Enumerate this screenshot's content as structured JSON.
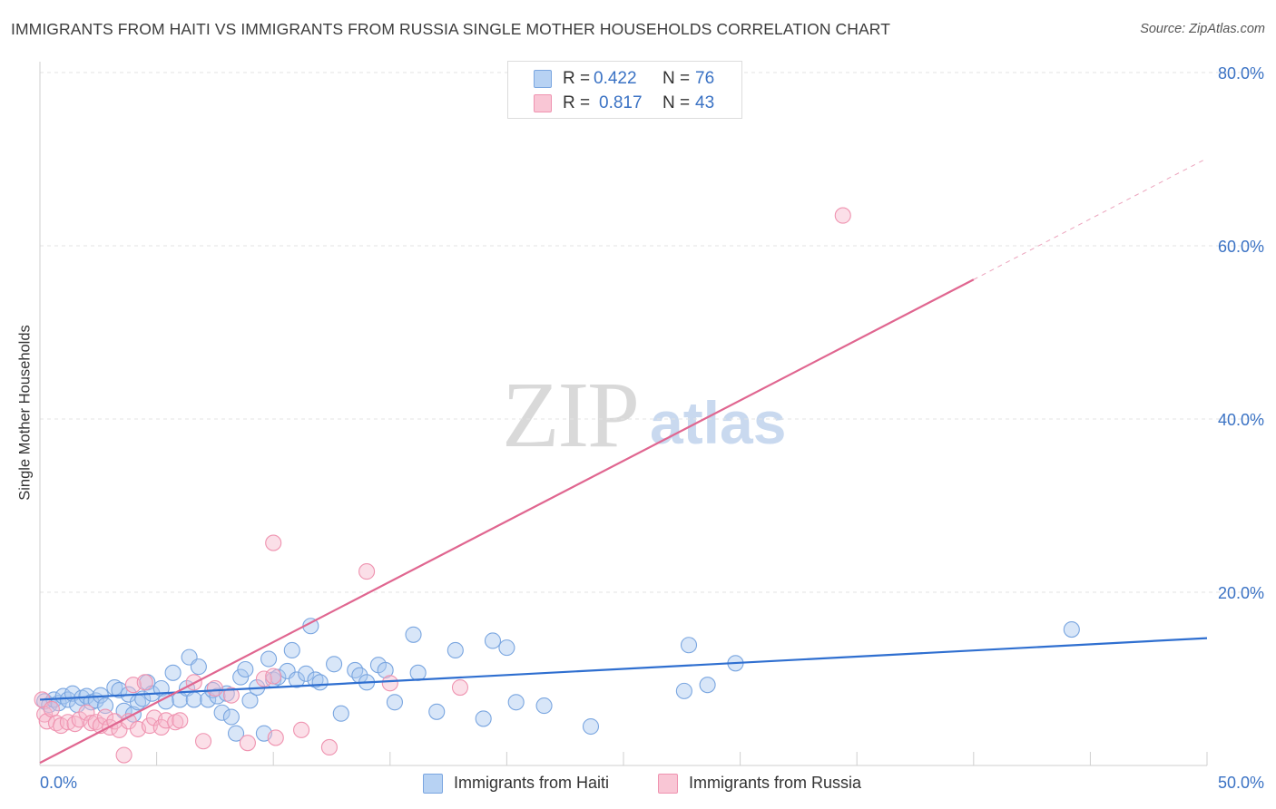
{
  "title": "IMMIGRANTS FROM HAITI VS IMMIGRANTS FROM RUSSIA SINGLE MOTHER HOUSEHOLDS CORRELATION CHART",
  "source": "Source: ZipAtlas.com",
  "watermark": {
    "part1": "ZIP",
    "part2": "atlas"
  },
  "legend": {
    "haiti": {
      "r_label": "R =",
      "r_value": "0.422",
      "n_label": "N =",
      "n_value": "76"
    },
    "russia": {
      "r_label": "R =",
      "r_value": "0.817",
      "n_label": "N =",
      "n_value": "43"
    }
  },
  "bottom_legend": {
    "haiti": "Immigrants from Haiti",
    "russia": "Immigrants from Russia"
  },
  "colors": {
    "haiti_fill": "#a9c8f0",
    "haiti_stroke": "#7aa6e0",
    "haiti_line": "#2f6fd0",
    "russia_fill": "#f7b8cb",
    "russia_stroke": "#ef93b0",
    "russia_line": "#e06690",
    "tick_label": "#3a72c4",
    "grid": "#e3e3e3"
  },
  "chart_data": {
    "type": "scatter",
    "title": "IMMIGRANTS FROM HAITI VS IMMIGRANTS FROM RUSSIA SINGLE MOTHER HOUSEHOLDS CORRELATION CHART",
    "xlabel": "",
    "ylabel": "Single Mother Households",
    "xlim": [
      0,
      50
    ],
    "ylim": [
      0,
      80
    ],
    "x_tick_labels": [
      "0.0%",
      "50.0%"
    ],
    "y_ticks": [
      20,
      40,
      60,
      80
    ],
    "y_tick_labels": [
      "20.0%",
      "40.0%",
      "60.0%",
      "80.0%"
    ],
    "grid": true,
    "legend_position": "top-center",
    "series": [
      {
        "name": "Immigrants from Haiti",
        "color": "#a9c8f0",
        "points": [
          [
            0.2,
            7.4
          ],
          [
            0.4,
            7.0
          ],
          [
            0.6,
            7.6
          ],
          [
            0.8,
            7.2
          ],
          [
            1.0,
            8.0
          ],
          [
            1.2,
            7.6
          ],
          [
            1.4,
            8.3
          ],
          [
            1.6,
            7.0
          ],
          [
            1.8,
            7.8
          ],
          [
            2.0,
            8.0
          ],
          [
            2.2,
            7.3
          ],
          [
            2.4,
            7.5
          ],
          [
            2.6,
            8.1
          ],
          [
            2.8,
            6.9
          ],
          [
            3.2,
            9.0
          ],
          [
            3.4,
            8.7
          ],
          [
            3.6,
            6.3
          ],
          [
            3.8,
            8.2
          ],
          [
            4.0,
            5.9
          ],
          [
            4.2,
            7.3
          ],
          [
            4.4,
            7.7
          ],
          [
            4.6,
            9.6
          ],
          [
            4.8,
            8.3
          ],
          [
            5.2,
            8.9
          ],
          [
            5.4,
            7.4
          ],
          [
            5.7,
            10.7
          ],
          [
            6.0,
            7.6
          ],
          [
            6.3,
            8.9
          ],
          [
            6.4,
            12.5
          ],
          [
            6.6,
            7.6
          ],
          [
            6.8,
            11.4
          ],
          [
            7.2,
            7.6
          ],
          [
            7.4,
            8.7
          ],
          [
            7.6,
            8.0
          ],
          [
            7.8,
            6.1
          ],
          [
            8.0,
            8.3
          ],
          [
            8.2,
            5.6
          ],
          [
            8.4,
            3.7
          ],
          [
            8.6,
            10.2
          ],
          [
            8.8,
            11.1
          ],
          [
            9.0,
            7.5
          ],
          [
            9.3,
            9.0
          ],
          [
            9.6,
            3.7
          ],
          [
            9.8,
            12.3
          ],
          [
            10.0,
            9.9
          ],
          [
            10.2,
            10.2
          ],
          [
            10.6,
            10.9
          ],
          [
            10.8,
            13.3
          ],
          [
            11.0,
            9.9
          ],
          [
            11.4,
            10.6
          ],
          [
            11.6,
            16.1
          ],
          [
            11.8,
            9.9
          ],
          [
            12.0,
            9.6
          ],
          [
            12.6,
            11.7
          ],
          [
            12.9,
            6.0
          ],
          [
            13.5,
            11.0
          ],
          [
            13.7,
            10.4
          ],
          [
            14.0,
            9.6
          ],
          [
            14.5,
            11.6
          ],
          [
            14.8,
            11.0
          ],
          [
            15.2,
            7.3
          ],
          [
            16.0,
            15.1
          ],
          [
            16.2,
            10.7
          ],
          [
            17.0,
            6.2
          ],
          [
            17.8,
            13.3
          ],
          [
            19.0,
            5.4
          ],
          [
            19.4,
            14.4
          ],
          [
            20.0,
            13.6
          ],
          [
            20.4,
            7.3
          ],
          [
            21.6,
            6.9
          ],
          [
            23.6,
            4.5
          ],
          [
            27.6,
            8.6
          ],
          [
            27.8,
            13.9
          ],
          [
            28.6,
            9.3
          ],
          [
            29.8,
            11.8
          ],
          [
            44.2,
            15.7
          ]
        ],
        "trendline": {
          "x": [
            0,
            50
          ],
          "y": [
            7.6,
            14.7
          ]
        }
      },
      {
        "name": "Immigrants from Russia",
        "color": "#f7b8cb",
        "points": [
          [
            0.1,
            7.6
          ],
          [
            0.2,
            5.9
          ],
          [
            0.3,
            5.1
          ],
          [
            0.5,
            6.5
          ],
          [
            0.7,
            4.9
          ],
          [
            0.9,
            4.6
          ],
          [
            1.2,
            5.0
          ],
          [
            1.5,
            4.8
          ],
          [
            1.7,
            5.3
          ],
          [
            2.0,
            6.1
          ],
          [
            2.2,
            4.9
          ],
          [
            2.4,
            5.0
          ],
          [
            2.6,
            4.6
          ],
          [
            2.8,
            5.6
          ],
          [
            3.0,
            4.4
          ],
          [
            3.2,
            5.1
          ],
          [
            3.4,
            4.1
          ],
          [
            3.6,
            1.2
          ],
          [
            3.8,
            5.1
          ],
          [
            4.0,
            9.3
          ],
          [
            4.2,
            4.2
          ],
          [
            4.5,
            9.6
          ],
          [
            4.7,
            4.6
          ],
          [
            4.9,
            5.5
          ],
          [
            5.2,
            4.4
          ],
          [
            5.4,
            5.2
          ],
          [
            5.8,
            5.0
          ],
          [
            6.0,
            5.2
          ],
          [
            6.6,
            9.6
          ],
          [
            7.0,
            2.8
          ],
          [
            7.5,
            8.9
          ],
          [
            8.2,
            8.1
          ],
          [
            8.9,
            2.6
          ],
          [
            9.6,
            10.0
          ],
          [
            10.0,
            10.3
          ],
          [
            10.0,
            25.7
          ],
          [
            10.1,
            3.2
          ],
          [
            11.2,
            4.1
          ],
          [
            12.4,
            2.1
          ],
          [
            14.0,
            22.4
          ],
          [
            15.0,
            9.5
          ],
          [
            18.0,
            9.0
          ],
          [
            34.4,
            63.5
          ]
        ],
        "trendline": {
          "x": [
            0,
            40
          ],
          "y": [
            0.3,
            56.1
          ]
        },
        "trendline_extension": {
          "x": [
            40,
            50
          ],
          "y": [
            56.1,
            70.1
          ]
        }
      }
    ]
  }
}
